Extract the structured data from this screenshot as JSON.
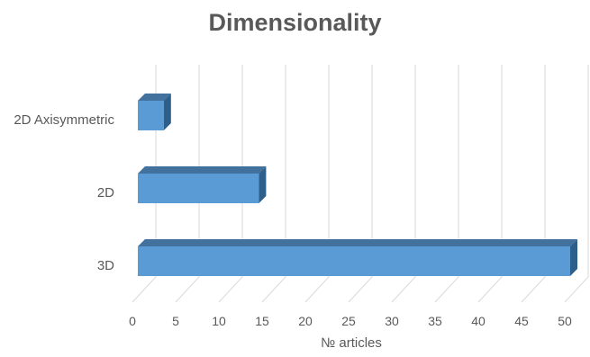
{
  "chart_data": {
    "type": "bar",
    "orientation": "horizontal",
    "style": "3d",
    "title": "Dimensionality",
    "xlabel": "№ articles",
    "ylabel": "",
    "categories": [
      "2D Axisymmetric",
      "2D",
      "3D"
    ],
    "values": [
      3,
      14,
      50
    ],
    "xlim": [
      0,
      50
    ],
    "xticks": [
      0,
      5,
      10,
      15,
      20,
      25,
      30,
      35,
      40,
      45,
      50
    ],
    "grid": true,
    "legend": "none",
    "colors": {
      "bar_front": "#5b9bd5",
      "bar_top": "#41719c",
      "bar_side": "#2e5e8a",
      "grid": "#d9d9d9",
      "text": "#595959",
      "title": "#595959"
    }
  }
}
